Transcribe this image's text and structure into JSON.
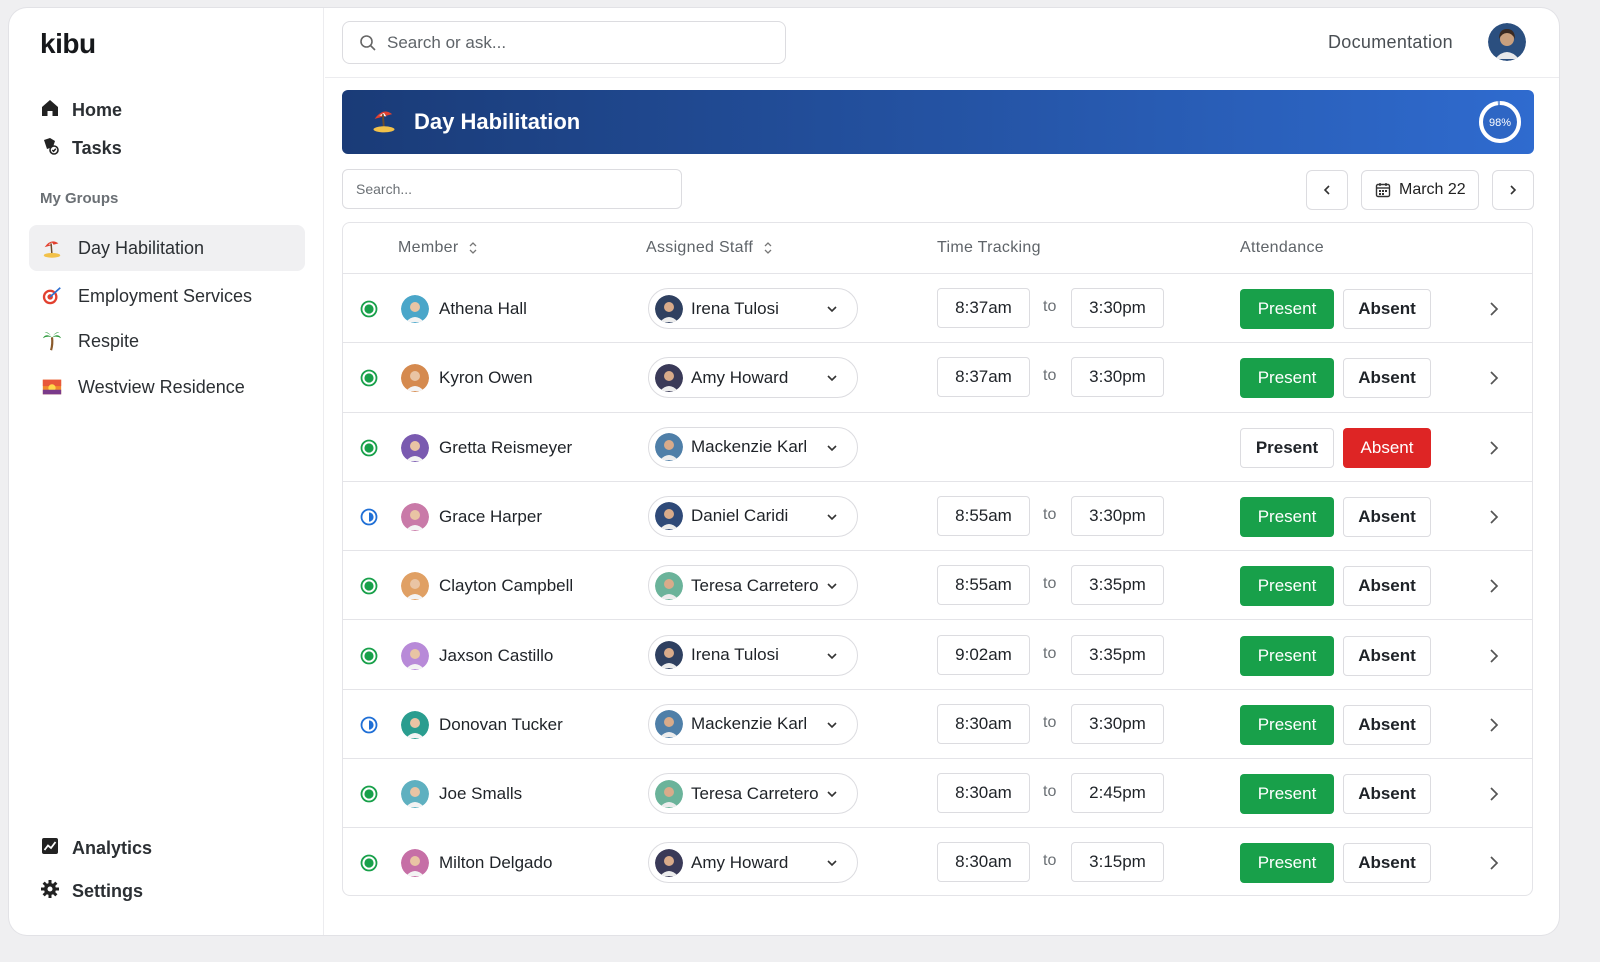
{
  "app": {
    "logo": "kibu"
  },
  "sidebar": {
    "nav": [
      {
        "label": "Home",
        "icon": "home-icon"
      },
      {
        "label": "Tasks",
        "icon": "tasks-icon"
      }
    ],
    "section_label": "My Groups",
    "groups": [
      {
        "label": "Day Habilitation",
        "icon": "beach-icon",
        "active": true
      },
      {
        "label": "Employment Services",
        "icon": "target-icon",
        "active": false
      },
      {
        "label": "Respite",
        "icon": "palm-tree-icon",
        "active": false
      },
      {
        "label": "Westview Residence",
        "icon": "sunset-icon",
        "active": false
      }
    ],
    "bottom": [
      {
        "label": "Analytics",
        "icon": "chart-icon"
      },
      {
        "label": "Settings",
        "icon": "gear-icon"
      }
    ]
  },
  "topbar": {
    "search_placeholder": "Search or ask...",
    "documentation": "Documentation"
  },
  "banner": {
    "title": "Day Habilitation",
    "progress_label": "98%",
    "progress_value": 0.98
  },
  "toolbar": {
    "filter_placeholder": "Search...",
    "date": "March 22"
  },
  "table": {
    "headers": {
      "member": "Member",
      "staff": "Assigned Staff",
      "time": "Time Tracking",
      "attendance": "Attendance"
    },
    "present_label": "Present",
    "absent_label": "Absent",
    "to_label": "to",
    "rows": [
      {
        "member": "Athena Hall",
        "staff": "Irena Tulosi",
        "in": "8:37am",
        "out": "3:30pm",
        "status": "full",
        "attendance": "present"
      },
      {
        "member": "Kyron Owen",
        "staff": "Amy Howard",
        "in": "8:37am",
        "out": "3:30pm",
        "status": "full",
        "attendance": "present"
      },
      {
        "member": "Gretta Reismeyer",
        "staff": "Mackenzie Karl",
        "in": "",
        "out": "",
        "status": "full",
        "attendance": "absent"
      },
      {
        "member": "Grace Harper",
        "staff": "Daniel Caridi",
        "in": "8:55am",
        "out": "3:30pm",
        "status": "half",
        "attendance": "present"
      },
      {
        "member": "Clayton Campbell",
        "staff": "Teresa Carretero",
        "in": "8:55am",
        "out": "3:35pm",
        "status": "full",
        "attendance": "present"
      },
      {
        "member": "Jaxson Castillo",
        "staff": "Irena Tulosi",
        "in": "9:02am",
        "out": "3:35pm",
        "status": "full",
        "attendance": "present"
      },
      {
        "member": "Donovan Tucker",
        "staff": "Mackenzie Karl",
        "in": "8:30am",
        "out": "3:30pm",
        "status": "half",
        "attendance": "present"
      },
      {
        "member": "Joe Smalls",
        "staff": "Teresa Carretero",
        "in": "8:30am",
        "out": "2:45pm",
        "status": "full",
        "attendance": "present"
      },
      {
        "member": "Milton Delgado",
        "staff": "Amy Howard",
        "in": "8:30am",
        "out": "3:15pm",
        "status": "full",
        "attendance": "present"
      }
    ]
  },
  "colors": {
    "present": "#18a04a",
    "absent": "#de2525",
    "status_green": "#18a04a",
    "status_blue": "#1f6fd6",
    "banner_start": "#1a3b77",
    "banner_end": "#2f6bcf"
  }
}
